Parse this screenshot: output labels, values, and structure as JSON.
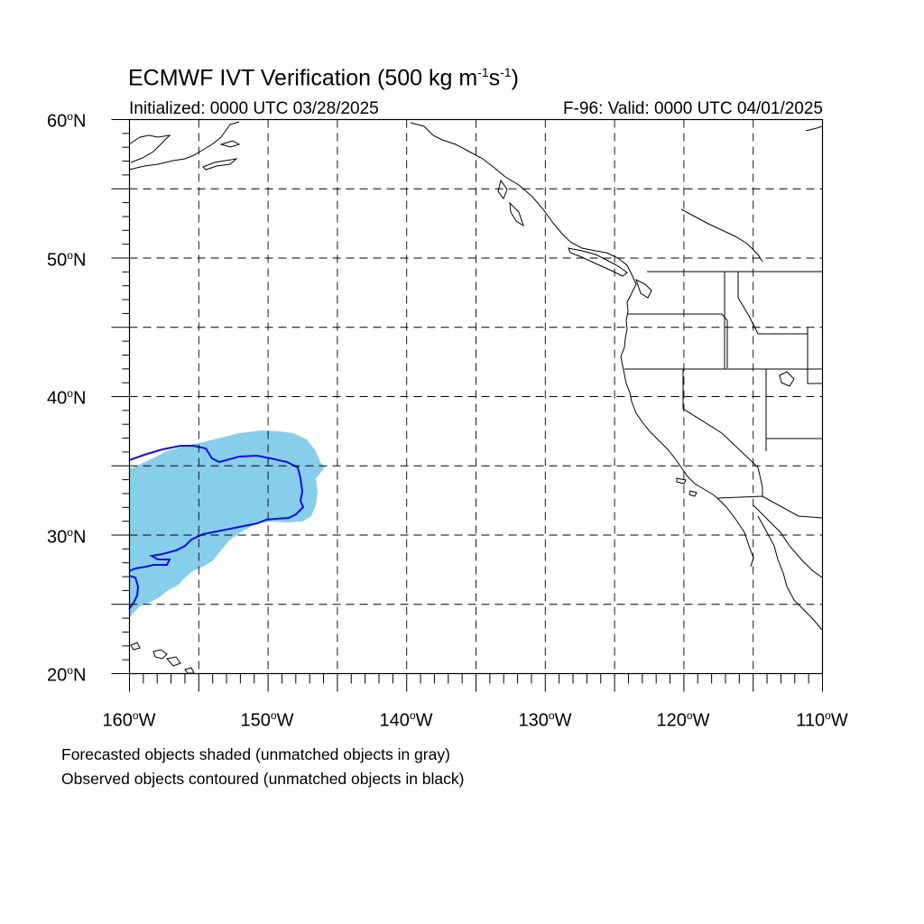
{
  "title": {
    "main": "ECMWF IVT Verification (500 kg m",
    "exp1": "-1",
    "mid": "s",
    "exp2": "-1",
    "close": ")"
  },
  "init_text": "Initialized: 0000 UTC 03/28/2025",
  "valid_text": "F-96: Valid: 0000 UTC 04/01/2025",
  "lat_axis": [
    {
      "value": "60",
      "hemi": "N"
    },
    {
      "value": "50",
      "hemi": "N"
    },
    {
      "value": "40",
      "hemi": "N"
    },
    {
      "value": "30",
      "hemi": "N"
    },
    {
      "value": "20",
      "hemi": "N"
    }
  ],
  "lon_axis": [
    {
      "value": "160",
      "hemi": "W"
    },
    {
      "value": "150",
      "hemi": "W"
    },
    {
      "value": "140",
      "hemi": "W"
    },
    {
      "value": "130",
      "hemi": "W"
    },
    {
      "value": "120",
      "hemi": "W"
    },
    {
      "value": "110",
      "hemi": "W"
    }
  ],
  "footnotes": [
    "Forecasted objects shaded (unmatched objects in gray)",
    "Observed objects contoured (unmatched objects in black)"
  ],
  "map": {
    "extent": {
      "lon_min": -160,
      "lon_max": -110,
      "lat_min": 20,
      "lat_max": 60
    },
    "grid_interval_deg": 5,
    "forecast_fill_color": "#87CEEB",
    "observed_contour_color": "#1010E0",
    "coast_color": "#000000"
  }
}
